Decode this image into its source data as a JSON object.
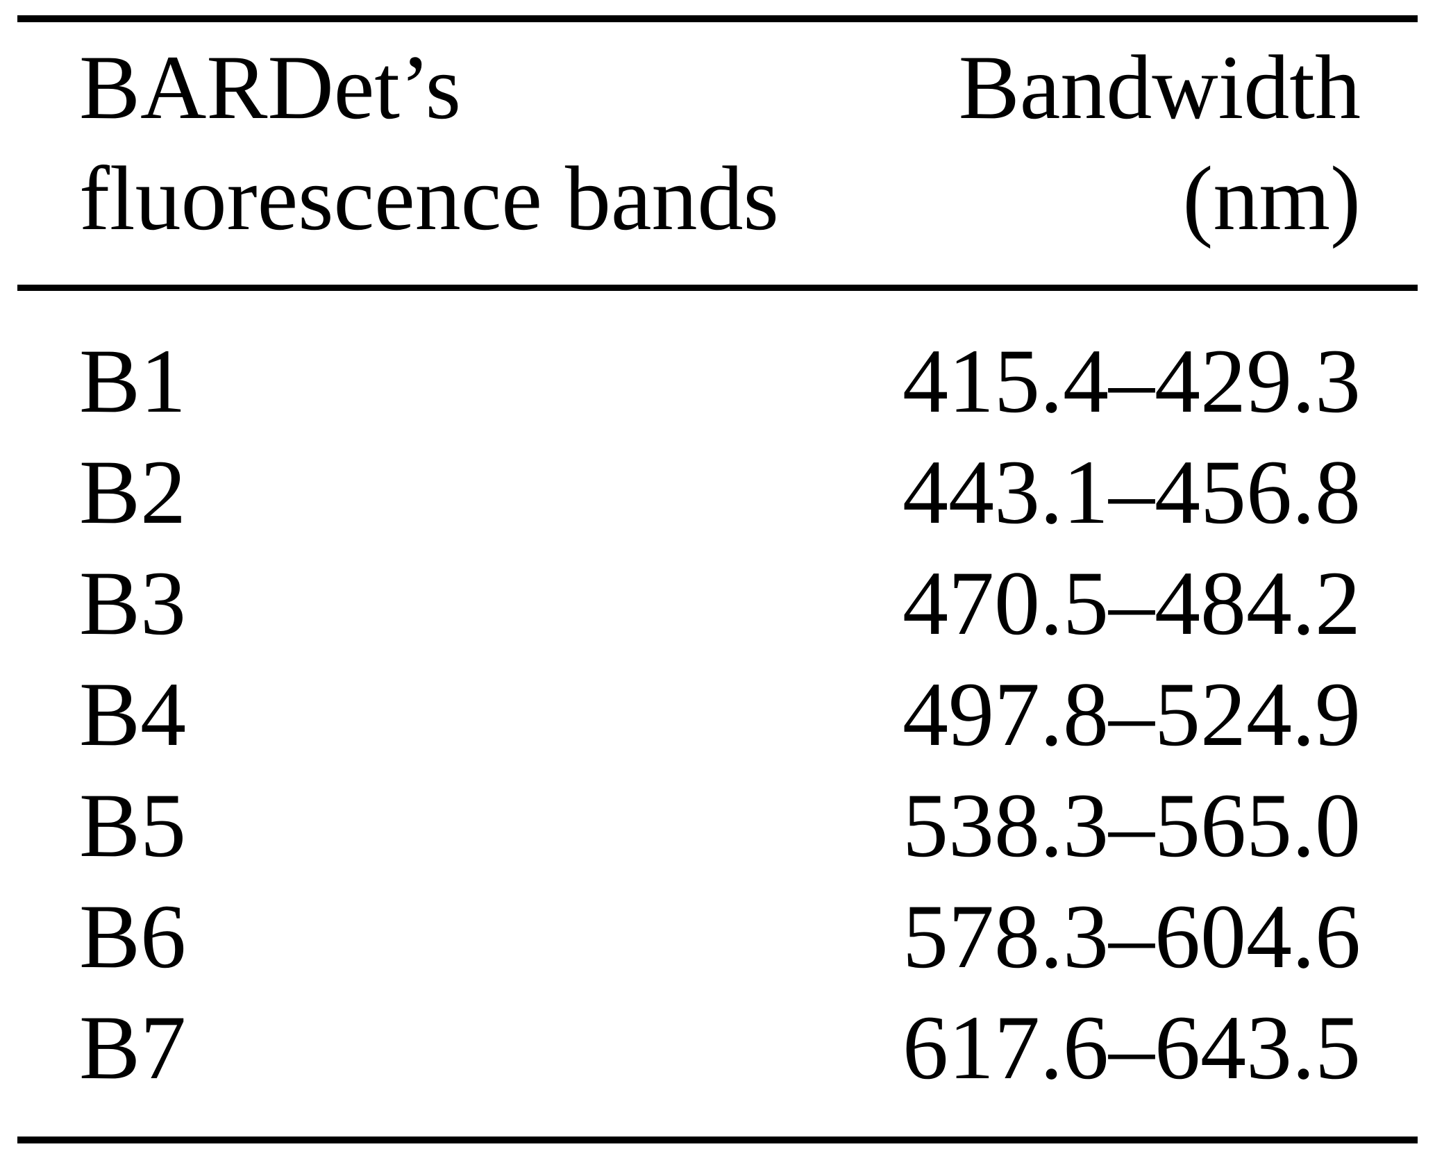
{
  "table": {
    "header": {
      "col1_line1": "BARDet’s",
      "col1_line2": "fluorescence bands",
      "col2_line1": "Bandwidth",
      "col2_line2": "(nm)"
    },
    "rows": [
      {
        "band": "B1",
        "bandwidth": "415.4–429.3"
      },
      {
        "band": "B2",
        "bandwidth": "443.1–456.8"
      },
      {
        "band": "B3",
        "bandwidth": "470.5–484.2"
      },
      {
        "band": "B4",
        "bandwidth": "497.8–524.9"
      },
      {
        "band": "B5",
        "bandwidth": "538.3–565.0"
      },
      {
        "band": "B6",
        "bandwidth": "578.3–604.6"
      },
      {
        "band": "B7",
        "bandwidth": "617.6–643.5"
      }
    ]
  }
}
